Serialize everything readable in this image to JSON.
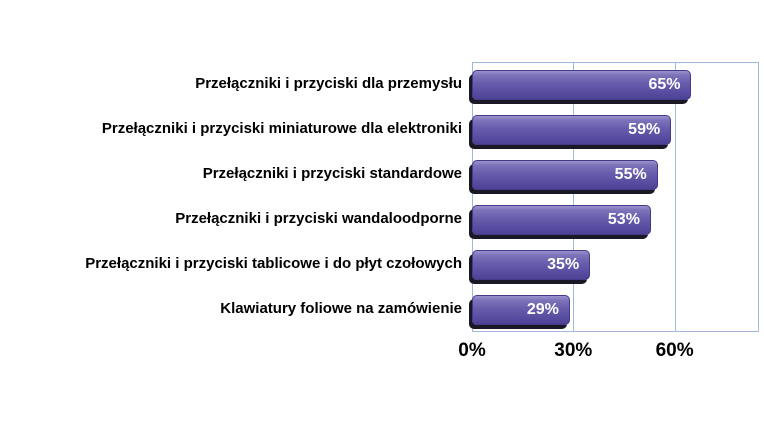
{
  "chart_data": {
    "type": "bar",
    "orientation": "horizontal",
    "title": "",
    "xlabel": "",
    "ylabel": "",
    "categories": [
      "Przełączniki i przyciski dla przemysłu",
      "Przełączniki i przyciski miniaturowe dla elektroniki",
      "Przełączniki i przyciski standardowe",
      "Przełączniki i przyciski wandaloodporne",
      "Przełączniki i przyciski tablicowe i do płyt czołowych",
      "Klawiatury foliowe na zamówienie"
    ],
    "values": [
      65,
      59,
      55,
      53,
      35,
      29
    ],
    "value_labels": [
      "65%",
      "59%",
      "55%",
      "53%",
      "35%",
      "29%"
    ],
    "xlim": [
      0,
      85
    ],
    "x_ticks": [
      {
        "value": 0,
        "label": "0%"
      },
      {
        "value": 30,
        "label": "30%"
      },
      {
        "value": 60,
        "label": "60%"
      }
    ],
    "grid": true,
    "legend": false,
    "colors": {
      "bar_top": "#9a92ce",
      "bar_body": "#675cac",
      "bar_bottom": "#4c4196",
      "bar_border": "#433a8a",
      "bar_shadow": "#1a1824",
      "plot_border": "#a3b7da",
      "gridline": "#a3b7da",
      "value_text": "#ffffff",
      "label_text": "#000000",
      "background": "#ffffff"
    }
  }
}
